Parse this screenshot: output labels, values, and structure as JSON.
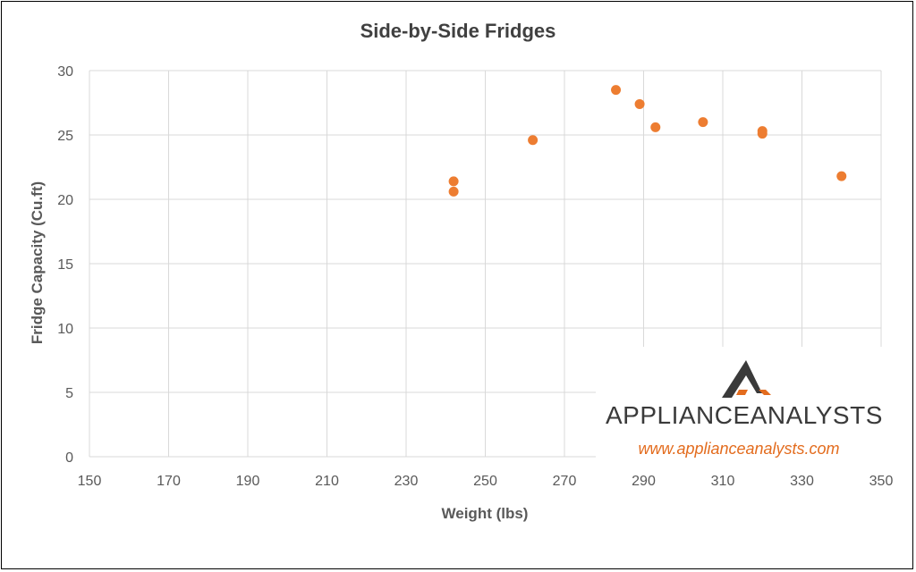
{
  "chart_data": {
    "type": "scatter",
    "title": "Side-by-Side Fridges",
    "xlabel": "Weight (lbs)",
    "ylabel": "Fridge Capacity (Cu.ft)",
    "xlim": [
      150,
      350
    ],
    "ylim": [
      0,
      30
    ],
    "x_ticks": [
      "150",
      "170",
      "190",
      "210",
      "230",
      "250",
      "270",
      "290",
      "310",
      "330",
      "350"
    ],
    "y_ticks": [
      "0",
      "5",
      "10",
      "15",
      "20",
      "25",
      "30"
    ],
    "grid": true,
    "legend": "none",
    "series": [
      {
        "color": "#ed7d31",
        "points": [
          {
            "x": 242,
            "y": 21.4
          },
          {
            "x": 242,
            "y": 20.6
          },
          {
            "x": 262,
            "y": 24.6
          },
          {
            "x": 283,
            "y": 28.5
          },
          {
            "x": 289,
            "y": 27.4
          },
          {
            "x": 293,
            "y": 25.6
          },
          {
            "x": 305,
            "y": 26.0
          },
          {
            "x": 320,
            "y": 25.3
          },
          {
            "x": 320,
            "y": 25.1
          },
          {
            "x": 340,
            "y": 21.8
          }
        ]
      }
    ]
  },
  "watermark": {
    "brand_left": "APPLIANCE",
    "brand_right": "ANALYSTS",
    "url": "www.applianceanalysts.com",
    "icon": "mountain-logo-icon",
    "brand_color": "#3a3a3a",
    "accent_color": "#e36c1e"
  },
  "colors": {
    "grid": "#d9d9d9",
    "text": "#595959",
    "marker": "#ed7d31"
  }
}
